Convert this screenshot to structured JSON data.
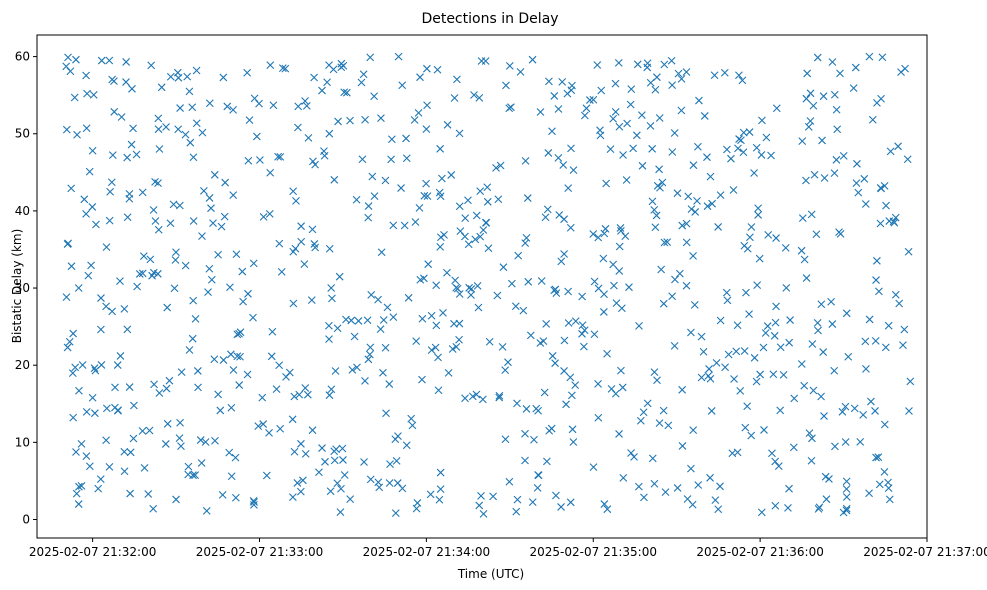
{
  "chart_data": {
    "type": "scatter",
    "title": "Detections in Delay",
    "xlabel": "Time (UTC)",
    "ylabel": "Bistatic Delay (km)",
    "marker": "x",
    "color": "#1f77b4",
    "grid": false,
    "x_tick_labels": [
      "2025-02-07 21:32:00",
      "2025-02-07 21:33:00",
      "2025-02-07 21:34:00",
      "2025-02-07 21:35:00",
      "2025-02-07 21:36:00",
      "2025-02-07 21:37:00"
    ],
    "y_ticks": [
      0,
      10,
      20,
      30,
      40,
      50,
      60
    ],
    "xlim": [
      "2025-02-07 21:31:40",
      "2025-02-07 21:37:00"
    ],
    "ylim": [
      -2.4,
      62.8
    ],
    "point_count": 900,
    "x_range": [
      "2025-02-07 21:31:50",
      "2025-02-07 21:36:54"
    ],
    "y_range": [
      0.7,
      60.0
    ],
    "points": [
      {
        "t": "21:31:51",
        "d": 22.3
      },
      {
        "t": "21:31:51",
        "d": 35.7
      },
      {
        "t": "21:31:52",
        "d": 58.1
      },
      {
        "t": "21:31:53",
        "d": 13.2
      },
      {
        "t": "21:31:53",
        "d": 24.1
      },
      {
        "t": "21:31:54",
        "d": 59.6
      },
      {
        "t": "21:31:55",
        "d": 30.0
      },
      {
        "t": "21:31:55",
        "d": 2.0
      },
      {
        "t": "21:31:56",
        "d": 9.8
      },
      {
        "t": "21:31:57",
        "d": 41.5
      },
      {
        "t": "21:31:58",
        "d": 55.2
      },
      {
        "t": "21:31:59",
        "d": 6.9
      },
      {
        "t": "21:32:00",
        "d": 47.8
      },
      {
        "t": "21:32:01",
        "d": 19.3
      },
      {
        "t": "21:32:02",
        "d": 4.0
      },
      {
        "t": "21:32:03",
        "d": 28.7
      },
      {
        "t": "21:32:05",
        "d": 35.3
      },
      {
        "t": "21:32:06",
        "d": 59.5
      },
      {
        "t": "21:32:08",
        "d": 14.5
      },
      {
        "t": "21:32:10",
        "d": 21.2
      },
      {
        "t": "21:32:12",
        "d": 56.7
      },
      {
        "t": "21:32:14",
        "d": 48.6
      },
      {
        "t": "21:32:16",
        "d": 30.2
      },
      {
        "t": "21:32:18",
        "d": 42.4
      },
      {
        "t": "21:32:20",
        "d": 3.3
      },
      {
        "t": "21:32:22",
        "d": 32.0
      },
      {
        "t": "21:32:24",
        "d": 16.4
      },
      {
        "t": "21:32:27",
        "d": 12.4
      },
      {
        "t": "21:32:28",
        "d": 38.4
      },
      {
        "t": "21:32:30",
        "d": 2.6
      },
      {
        "t": "21:32:32",
        "d": 19.1
      },
      {
        "t": "21:32:34",
        "d": 57.4
      },
      {
        "t": "21:32:37",
        "d": 26.0
      },
      {
        "t": "21:32:40",
        "d": 42.6
      },
      {
        "t": "21:32:44",
        "d": 10.2
      },
      {
        "t": "21:32:47",
        "d": 57.3
      },
      {
        "t": "21:32:50",
        "d": 5.6
      },
      {
        "t": "21:32:53",
        "d": 21.1
      },
      {
        "t": "21:32:56",
        "d": 46.5
      },
      {
        "t": "21:32:58",
        "d": 1.9
      },
      {
        "t": "21:33:01",
        "d": 15.8
      },
      {
        "t": "21:33:05",
        "d": 53.7
      },
      {
        "t": "21:33:08",
        "d": 32.1
      },
      {
        "t": "21:33:12",
        "d": 2.9
      },
      {
        "t": "21:33:15",
        "d": 36.0
      },
      {
        "t": "21:33:20",
        "d": 46.0
      },
      {
        "t": "21:33:25",
        "d": 58.9
      },
      {
        "t": "21:33:28",
        "d": 4.7
      },
      {
        "t": "21:33:33",
        "d": 25.8
      },
      {
        "t": "21:33:40",
        "d": 5.2
      },
      {
        "t": "21:33:46",
        "d": 27.5
      },
      {
        "t": "21:33:50",
        "d": 60.0
      },
      {
        "t": "21:33:55",
        "d": 12.2
      },
      {
        "t": "21:34:00",
        "d": 50.6
      },
      {
        "t": "21:34:04",
        "d": 58.3
      },
      {
        "t": "21:34:08",
        "d": 19.0
      },
      {
        "t": "21:34:12",
        "d": 40.6
      },
      {
        "t": "21:34:18",
        "d": 16.2
      },
      {
        "t": "21:34:24",
        "d": 3.0
      },
      {
        "t": "21:34:30",
        "d": 58.8
      },
      {
        "t": "21:34:36",
        "d": 36.5
      },
      {
        "t": "21:34:40",
        "d": 4.1
      },
      {
        "t": "21:34:46",
        "d": 54.9
      },
      {
        "t": "21:34:52",
        "d": 48.1
      },
      {
        "t": "21:34:56",
        "d": 28.9
      },
      {
        "t": "21:35:00",
        "d": 37.0
      },
      {
        "t": "21:35:04",
        "d": 2.0
      },
      {
        "t": "21:35:08",
        "d": 56.5
      },
      {
        "t": "21:35:12",
        "d": 44.0
      },
      {
        "t": "21:35:16",
        "d": 59.0
      },
      {
        "t": "21:35:22",
        "d": 19.1
      },
      {
        "t": "21:35:27",
        "d": 12.2
      },
      {
        "t": "21:35:32",
        "d": 38.1
      },
      {
        "t": "21:35:38",
        "d": 54.3
      },
      {
        "t": "21:35:42",
        "d": 5.4
      },
      {
        "t": "21:35:48",
        "d": 29.4
      },
      {
        "t": "21:35:54",
        "d": 47.6
      },
      {
        "t": "21:36:00",
        "d": 18.8
      },
      {
        "t": "21:36:06",
        "d": 53.3
      },
      {
        "t": "21:36:10",
        "d": 1.5
      },
      {
        "t": "21:36:16",
        "d": 33.7
      },
      {
        "t": "21:36:22",
        "d": 27.9
      },
      {
        "t": "21:36:26",
        "d": 59.3
      },
      {
        "t": "21:36:30",
        "d": 0.9
      },
      {
        "t": "21:36:34",
        "d": 14.4
      },
      {
        "t": "21:36:38",
        "d": 40.9
      },
      {
        "t": "21:36:42",
        "d": 54.0
      },
      {
        "t": "21:36:46",
        "d": 4.8
      },
      {
        "t": "21:36:50",
        "d": 28.0
      },
      {
        "t": "21:36:54",
        "d": 17.9
      }
    ]
  }
}
